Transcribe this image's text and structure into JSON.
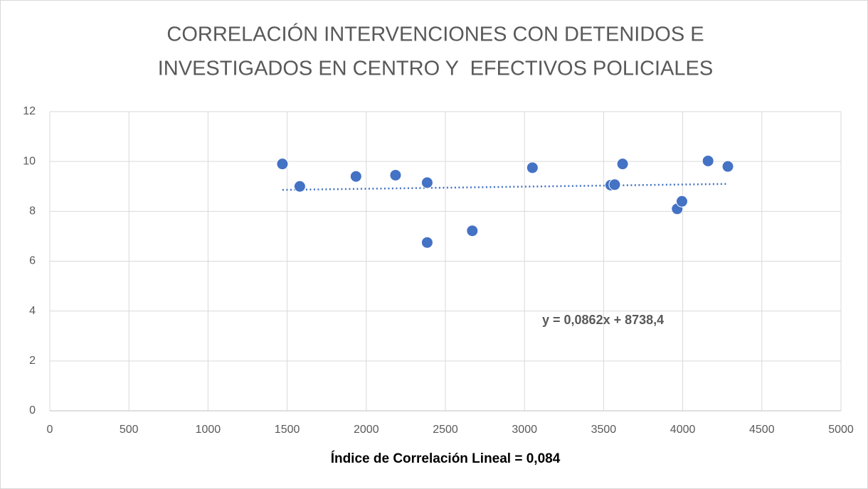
{
  "chart_data": {
    "type": "scatter",
    "title": [
      "CORRELACIÓN INTERVENCIONES CON DETENIDOS E",
      "INVESTIGADOS EN CENTRO Y  EFECTIVOS POLICIALES"
    ],
    "x_label": "Índice de Correlación Lineal = 0,084",
    "x": [
      1470,
      1580,
      1935,
      2185,
      2385,
      2385,
      2670,
      3050,
      3545,
      3570,
      3620,
      3965,
      3995,
      4160,
      4285
    ],
    "values": [
      9.9,
      9.0,
      9.4,
      9.45,
      9.15,
      6.75,
      7.22,
      9.75,
      9.05,
      9.07,
      9.9,
      8.1,
      8.4,
      10.02,
      9.8
    ],
    "color": "#4472c4",
    "trendline": {
      "x": [
        1470,
        4285
      ],
      "values": [
        8.86,
        9.1
      ],
      "label": "y = 0,0862x + 8738,4"
    },
    "xlim": [
      0,
      5000
    ],
    "xticks": [
      0,
      500,
      1000,
      1500,
      2000,
      2500,
      3000,
      3500,
      4000,
      4500,
      5000
    ],
    "ylim": [
      0,
      12
    ],
    "yticks": [
      0,
      2,
      4,
      6,
      8,
      10,
      12
    ],
    "grid": true
  }
}
